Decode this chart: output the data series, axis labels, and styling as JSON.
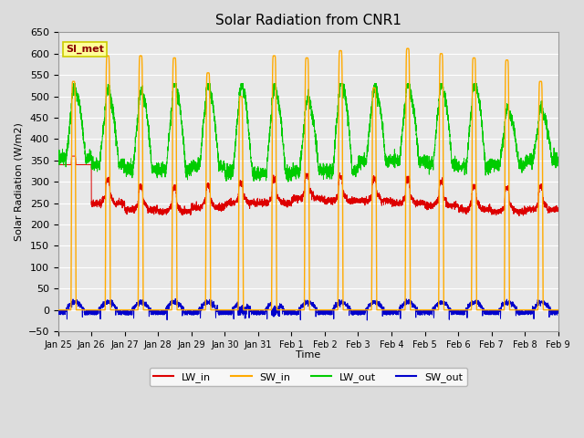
{
  "title": "Solar Radiation from CNR1",
  "xlabel": "Time",
  "ylabel": "Solar Radiation (W/m2)",
  "ylim": [
    -50,
    650
  ],
  "background_color": "#dcdcdc",
  "plot_bg_color": "#e8e8e8",
  "colors": {
    "LW_in": "#dd0000",
    "SW_in": "#ffaa00",
    "LW_out": "#00cc00",
    "SW_out": "#0000cc"
  },
  "station_label": "SI_met",
  "station_label_color": "#8b0000",
  "station_box_facecolor": "#ffff99",
  "station_box_edgecolor": "#cccc00",
  "n_days": 15
}
